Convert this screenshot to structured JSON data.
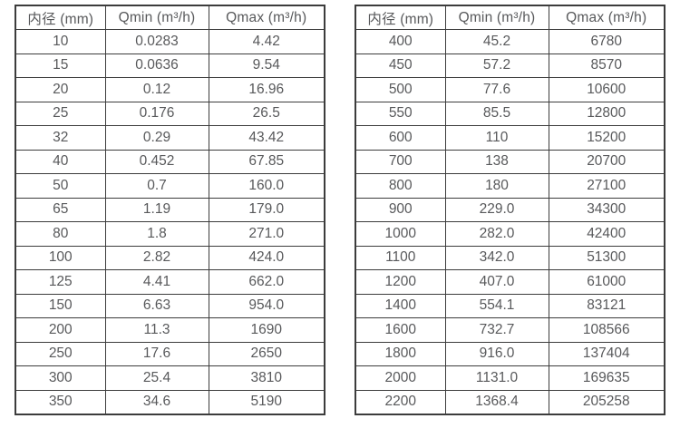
{
  "colors": {
    "background": "#ffffff",
    "border": "#3c3c3c",
    "text": "#58595b"
  },
  "chart_data": [
    {
      "type": "table",
      "name": "flow-rates-small-diameters",
      "columns": [
        "内径 (mm)",
        "Qmin (m³/h)",
        "Qmax (m³/h)"
      ],
      "rows": [
        [
          "10",
          "0.0283",
          "4.42"
        ],
        [
          "15",
          "0.0636",
          "9.54"
        ],
        [
          "20",
          "0.12",
          "16.96"
        ],
        [
          "25",
          "0.176",
          "26.5"
        ],
        [
          "32",
          "0.29",
          "43.42"
        ],
        [
          "40",
          "0.452",
          "67.85"
        ],
        [
          "50",
          "0.7",
          "160.0"
        ],
        [
          "65",
          "1.19",
          "179.0"
        ],
        [
          "80",
          "1.8",
          "271.0"
        ],
        [
          "100",
          "2.82",
          "424.0"
        ],
        [
          "125",
          "4.41",
          "662.0"
        ],
        [
          "150",
          "6.63",
          "954.0"
        ],
        [
          "200",
          "11.3",
          "1690"
        ],
        [
          "250",
          "17.6",
          "2650"
        ],
        [
          "300",
          "25.4",
          "3810"
        ],
        [
          "350",
          "34.6",
          "5190"
        ]
      ]
    },
    {
      "type": "table",
      "name": "flow-rates-large-diameters",
      "columns": [
        "内径 (mm)",
        "Qmin (m³/h)",
        "Qmax (m³/h)"
      ],
      "rows": [
        [
          "400",
          "45.2",
          "6780"
        ],
        [
          "450",
          "57.2",
          "8570"
        ],
        [
          "500",
          "77.6",
          "10600"
        ],
        [
          "550",
          "85.5",
          "12800"
        ],
        [
          "600",
          "110",
          "15200"
        ],
        [
          "700",
          "138",
          "20700"
        ],
        [
          "800",
          "180",
          "27100"
        ],
        [
          "900",
          "229.0",
          "34300"
        ],
        [
          "1000",
          "282.0",
          "42400"
        ],
        [
          "1100",
          "342.0",
          "51300"
        ],
        [
          "1200",
          "407.0",
          "61000"
        ],
        [
          "1400",
          "554.1",
          "83121"
        ],
        [
          "1600",
          "732.7",
          "108566"
        ],
        [
          "1800",
          "916.0",
          "137404"
        ],
        [
          "2000",
          "1131.0",
          "169635"
        ],
        [
          "2200",
          "1368.4",
          "205258"
        ]
      ]
    }
  ]
}
